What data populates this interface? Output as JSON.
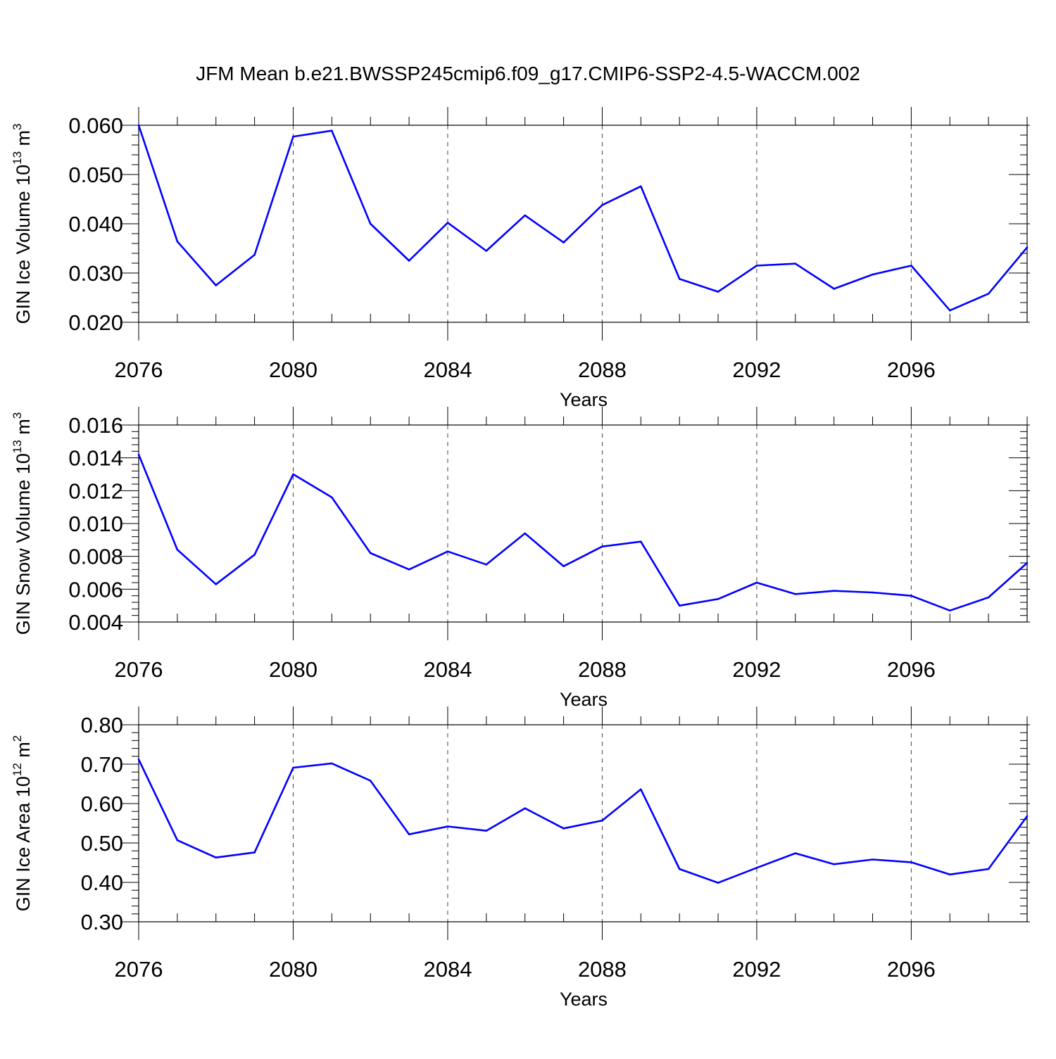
{
  "title": "JFM Mean b.e21.BWSSP245cmip6.f09_g17.CMIP6-SSP2-4.5-WACCM.002",
  "line_color": "#0000ff",
  "chart_data": [
    {
      "type": "line",
      "ylabel": "GIN Ice Volume",
      "ylabel_exp": "13",
      "ylabel_unit_exp": "3",
      "xlabel": "Years",
      "xlim": [
        2076,
        2099
      ],
      "ylim": [
        0.02,
        0.06
      ],
      "ytick_values": [
        0.02,
        0.03,
        0.04,
        0.05,
        0.06
      ],
      "ytick_labels": [
        "0.020",
        "0.030",
        "0.040",
        "0.050",
        "0.060"
      ],
      "xtick_values": [
        2076,
        2080,
        2084,
        2088,
        2092,
        2096
      ],
      "xtick_labels": [
        "2076",
        "2080",
        "2084",
        "2088",
        "2092",
        "2096"
      ],
      "x": [
        2076,
        2077,
        2078,
        2079,
        2080,
        2081,
        2082,
        2083,
        2084,
        2085,
        2086,
        2087,
        2088,
        2089,
        2090,
        2091,
        2092,
        2093,
        2094,
        2095,
        2096,
        2097,
        2098,
        2099
      ],
      "values": [
        0.06,
        0.0364,
        0.0275,
        0.0337,
        0.0577,
        0.0589,
        0.04,
        0.0325,
        0.0402,
        0.0345,
        0.0417,
        0.0362,
        0.0438,
        0.0476,
        0.0288,
        0.0262,
        0.0315,
        0.0319,
        0.0268,
        0.0297,
        0.0315,
        0.0224,
        0.0258,
        0.0352
      ]
    },
    {
      "type": "line",
      "ylabel": "GIN Snow Volume",
      "ylabel_exp": "13",
      "ylabel_unit_exp": "3",
      "xlabel": "Years",
      "xlim": [
        2076,
        2099
      ],
      "ylim": [
        0.004,
        0.016
      ],
      "ytick_values": [
        0.004,
        0.006,
        0.008,
        0.01,
        0.012,
        0.014,
        0.016
      ],
      "ytick_labels": [
        "0.004",
        "0.006",
        "0.008",
        "0.010",
        "0.012",
        "0.014",
        "0.016"
      ],
      "xtick_values": [
        2076,
        2080,
        2084,
        2088,
        2092,
        2096
      ],
      "xtick_labels": [
        "2076",
        "2080",
        "2084",
        "2088",
        "2092",
        "2096"
      ],
      "x": [
        2076,
        2077,
        2078,
        2079,
        2080,
        2081,
        2082,
        2083,
        2084,
        2085,
        2086,
        2087,
        2088,
        2089,
        2090,
        2091,
        2092,
        2093,
        2094,
        2095,
        2096,
        2097,
        2098,
        2099
      ],
      "values": [
        0.0142,
        0.0084,
        0.0063,
        0.0081,
        0.013,
        0.0116,
        0.0082,
        0.0072,
        0.0083,
        0.0075,
        0.0094,
        0.0074,
        0.0086,
        0.0089,
        0.005,
        0.0054,
        0.0064,
        0.0057,
        0.0059,
        0.0058,
        0.0056,
        0.0047,
        0.0055,
        0.0076
      ]
    },
    {
      "type": "line",
      "ylabel": "GIN Ice Area",
      "ylabel_exp": "12",
      "ylabel_unit_exp": "2",
      "xlabel": "Years",
      "xlim": [
        2076,
        2099
      ],
      "ylim": [
        0.3,
        0.8
      ],
      "ytick_values": [
        0.3,
        0.4,
        0.5,
        0.6,
        0.7,
        0.8
      ],
      "ytick_labels": [
        "0.30",
        "0.40",
        "0.50",
        "0.60",
        "0.70",
        "0.80"
      ],
      "xtick_values": [
        2076,
        2080,
        2084,
        2088,
        2092,
        2096
      ],
      "xtick_labels": [
        "2076",
        "2080",
        "2084",
        "2088",
        "2092",
        "2096"
      ],
      "x": [
        2076,
        2077,
        2078,
        2079,
        2080,
        2081,
        2082,
        2083,
        2084,
        2085,
        2086,
        2087,
        2088,
        2089,
        2090,
        2091,
        2092,
        2093,
        2094,
        2095,
        2096,
        2097,
        2098,
        2099
      ],
      "values": [
        0.712,
        0.507,
        0.463,
        0.476,
        0.691,
        0.702,
        0.658,
        0.522,
        0.542,
        0.531,
        0.588,
        0.537,
        0.557,
        0.636,
        0.434,
        0.399,
        0.437,
        0.474,
        0.446,
        0.458,
        0.451,
        0.42,
        0.434,
        0.568
      ]
    }
  ]
}
